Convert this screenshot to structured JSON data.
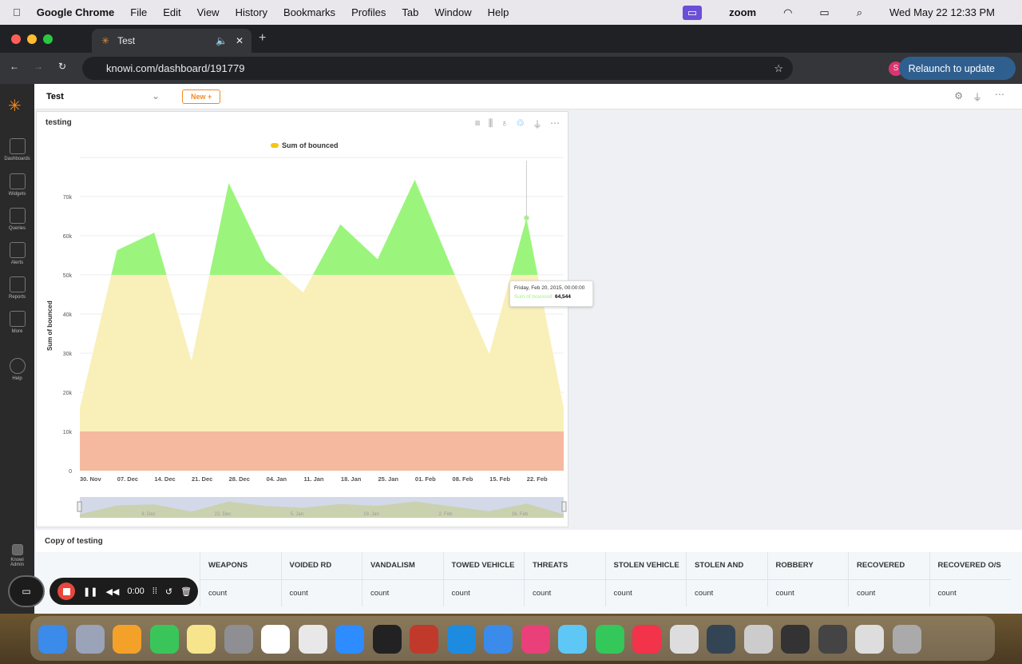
{
  "menubar": {
    "app": "Google Chrome",
    "items": [
      "File",
      "Edit",
      "View",
      "History",
      "Bookmarks",
      "Profiles",
      "Tab",
      "Window",
      "Help"
    ],
    "zoom": "zoom",
    "datetime": "Wed May 22  12:33 PM"
  },
  "browser": {
    "tab_title": "Test",
    "url": "knowi.com/dashboard/191779",
    "relaunch": "Relaunch to update",
    "profile": "S"
  },
  "sidebar": {
    "items": [
      "Dashboards",
      "Widgets",
      "Queries",
      "Alerts",
      "Reports",
      "More",
      "Help"
    ],
    "admin": "Knowi Admin"
  },
  "header": {
    "dashboard": "Test",
    "new_button": "New +"
  },
  "widget": {
    "title": "testing",
    "tooltip": {
      "date": "Friday, Feb 20, 2015, 00:00:00",
      "label": "Sum of bounced:",
      "value": "64,544"
    }
  },
  "chart_data": {
    "type": "area",
    "legend": [
      "Sum of bounced"
    ],
    "legend_placement": "top",
    "ylabel": "Sum of bounced",
    "xlabel": "",
    "ylim": [
      0,
      80000
    ],
    "yticks": [
      "0",
      "10k",
      "20k",
      "30k",
      "40k",
      "50k",
      "60k",
      "70k"
    ],
    "xticks": [
      "30. Nov",
      "07. Dec",
      "14. Dec",
      "21. Dec",
      "28. Dec",
      "04. Jan",
      "11. Jan",
      "18. Jan",
      "25. Jan",
      "01. Feb",
      "08. Feb",
      "15. Feb",
      "22. Feb"
    ],
    "x": [
      "2014-11-28",
      "2014-12-05",
      "2014-12-12",
      "2014-12-19",
      "2014-12-26",
      "2015-01-02",
      "2015-01-09",
      "2015-01-16",
      "2015-01-23",
      "2015-01-30",
      "2015-02-06",
      "2015-02-13",
      "2015-02-20",
      "2015-02-27"
    ],
    "series": [
      {
        "name": "Sum of bounced",
        "values": [
          16000,
          56300,
          60800,
          28000,
          73500,
          53700,
          45500,
          62900,
          54000,
          74300,
          51600,
          29800,
          64544,
          16000
        ]
      }
    ],
    "bands": [
      {
        "from": 0,
        "to": 10000,
        "color": "#f5b9a0"
      },
      {
        "from": 10000,
        "to": 50000,
        "color": "#f8f0b8"
      },
      {
        "from": 50000,
        "to": 80000,
        "color": "#9bf57c"
      }
    ],
    "navigator_ticks": [
      "8. Dec",
      "22. Dec",
      "5. Jan",
      "19. Jan",
      "2. Feb",
      "16. Feb"
    ],
    "grid": true
  },
  "table": {
    "title": "Copy of testing",
    "columns": [
      "WEAPONS",
      "VOIDED RD",
      "VANDALISM",
      "TOWED VEHICLE",
      "THREATS",
      "STOLEN VEHICLE",
      "STOLEN AND",
      "ROBBERY",
      "RECOVERED",
      "RECOVERED O/S"
    ],
    "row": [
      "count",
      "count",
      "count",
      "count",
      "count",
      "count",
      "count",
      "count",
      "count",
      "count"
    ]
  },
  "recorder": {
    "time": "0:00"
  },
  "colors": {
    "sidebar": "#2a2a2a",
    "accent": "#f08a24",
    "relaunch": "#2f5f8f"
  }
}
